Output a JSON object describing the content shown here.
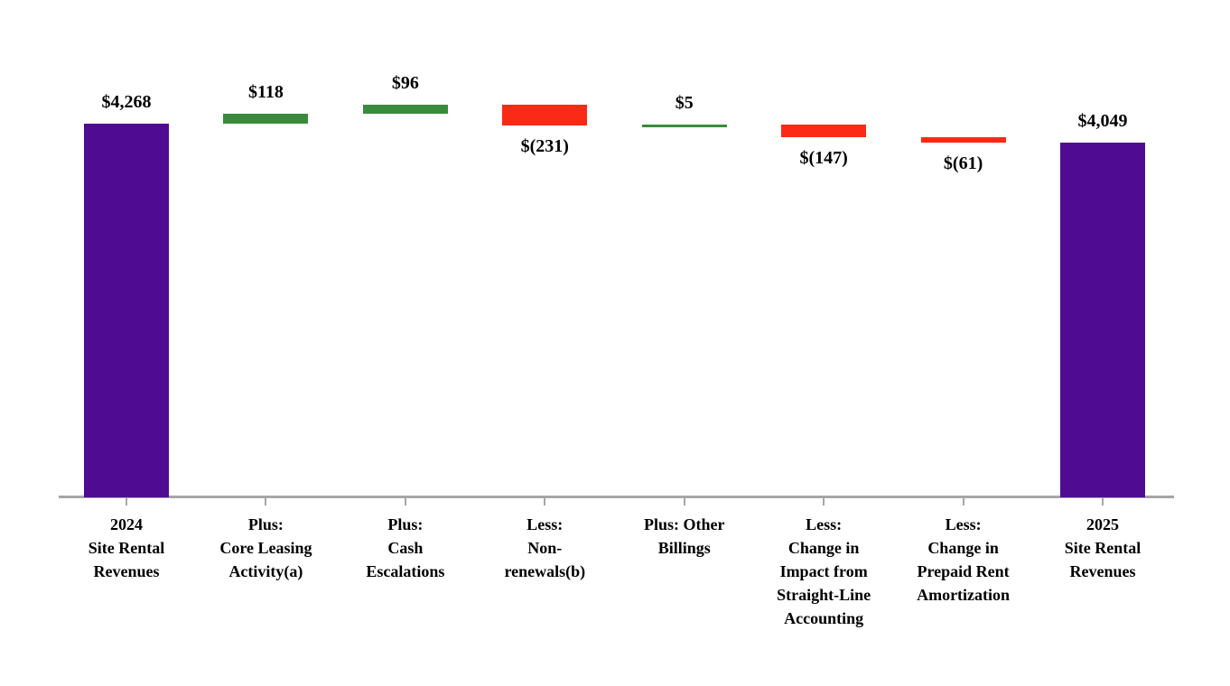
{
  "chart_data": {
    "type": "bar",
    "subtype": "waterfall",
    "title": "",
    "xlabel": "",
    "ylabel": "",
    "layout": {
      "grid": false,
      "legend": false,
      "y_axis_visible": false,
      "value_labels": "outside",
      "orientation": "vertical"
    },
    "colors": {
      "total": "#4f0c92",
      "increase": "#3a8a3d",
      "decrease": "#fb2a17",
      "axis": "#a6a6a6",
      "label_text": "#000000"
    },
    "steps": [
      {
        "category_lines": [
          "2024",
          "Site Rental",
          "Revenues"
        ],
        "kind": "total",
        "value": 4268,
        "display": "$4,268"
      },
      {
        "category_lines": [
          "Plus:",
          "Core Leasing",
          "Activity(a)"
        ],
        "kind": "delta",
        "value": 118,
        "display": "$118"
      },
      {
        "category_lines": [
          "Plus:",
          "Cash",
          "Escalations"
        ],
        "kind": "delta",
        "value": 96,
        "display": "$96"
      },
      {
        "category_lines": [
          "Less:",
          "Non-",
          "renewals(b)"
        ],
        "kind": "delta",
        "value": -231,
        "display": "$(231)"
      },
      {
        "category_lines": [
          "Plus: Other",
          "Billings"
        ],
        "kind": "delta",
        "value": 5,
        "display": "$5"
      },
      {
        "category_lines": [
          "Less:",
          "Change in",
          "Impact from",
          "Straight-Line",
          "Accounting"
        ],
        "kind": "delta",
        "value": -147,
        "display": "$(147)"
      },
      {
        "category_lines": [
          "Less:",
          "Change in",
          "Prepaid Rent",
          "Amortization"
        ],
        "kind": "delta",
        "value": -61,
        "display": "$(61)"
      },
      {
        "category_lines": [
          "2025",
          "Site Rental",
          "Revenues"
        ],
        "kind": "total",
        "value": 4049,
        "display": "$4,049"
      }
    ]
  }
}
